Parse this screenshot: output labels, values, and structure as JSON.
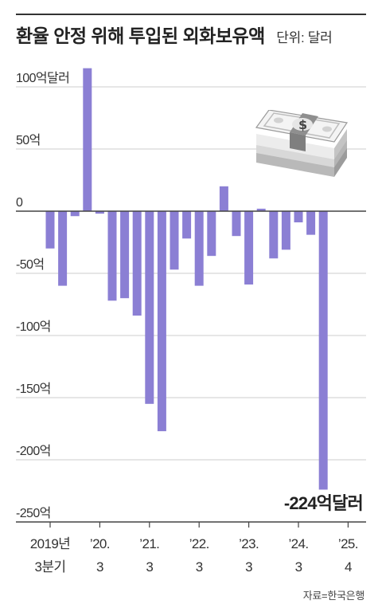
{
  "chart_data": {
    "type": "bar",
    "title": "환율 안정 위해 투입된 외화보유액",
    "unit_label": "단위: 달러",
    "ylim": [
      -250,
      100
    ],
    "yticks": [
      {
        "value": 100,
        "label": "100억달러"
      },
      {
        "value": 50,
        "label": "50억"
      },
      {
        "value": 0,
        "label": "0"
      },
      {
        "value": -50,
        "label": "-50억"
      },
      {
        "value": -100,
        "label": "-100억"
      },
      {
        "value": -150,
        "label": "-150억"
      },
      {
        "value": -200,
        "label": "-200억"
      },
      {
        "value": -250,
        "label": "-250억"
      }
    ],
    "grid": true,
    "values": [
      -30,
      -60,
      -4,
      115,
      -2,
      -72,
      -70,
      -84,
      -155,
      -177,
      -47,
      -22,
      -60,
      -36,
      20,
      -20,
      -59,
      2,
      -38,
      -31,
      -9,
      -19,
      -224
    ],
    "x_tick_labels": [
      {
        "index": 0,
        "line1": "2019년",
        "line2": "3분기"
      },
      {
        "index": 4,
        "line1": "’20.",
        "line2": "3"
      },
      {
        "index": 8,
        "line1": "’21.",
        "line2": "3"
      },
      {
        "index": 12,
        "line1": "’22.",
        "line2": "3"
      },
      {
        "index": 16,
        "line1": "’23.",
        "line2": "3"
      },
      {
        "index": 20,
        "line1": "’24.",
        "line2": "3"
      },
      {
        "index": 24,
        "line1": "’25.",
        "line2": "4"
      }
    ],
    "annotation": {
      "index": 22,
      "text": "-224억달러"
    }
  },
  "colors": {
    "bar": "#8b7fd4",
    "grid": "#cccccc",
    "axis": "#444444"
  },
  "source": "자료=한국은행",
  "icon": "money-stack-icon"
}
